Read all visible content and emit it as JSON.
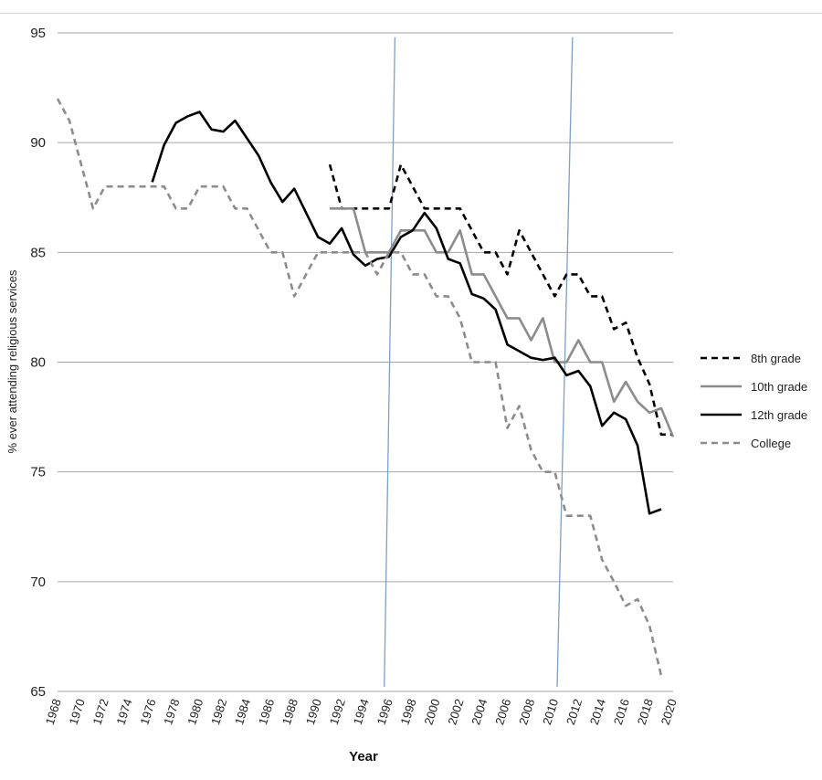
{
  "chart_data": {
    "type": "line",
    "title": "",
    "xlabel": "Year",
    "ylabel": "% ever attending religious services",
    "xlim": [
      1968,
      2020
    ],
    "ylim": [
      65,
      95
    ],
    "y_ticks": [
      "65",
      "70",
      "75",
      "80",
      "85",
      "90",
      "95"
    ],
    "x_ticks": [
      "1968",
      "1970",
      "1972",
      "1974",
      "1976",
      "1978",
      "1980",
      "1982",
      "1984",
      "1986",
      "1988",
      "1990",
      "1992",
      "1994",
      "1996",
      "1998",
      "2000",
      "2002",
      "2004",
      "2006",
      "2008",
      "2010",
      "2012",
      "2014",
      "2016",
      "2018",
      "2020"
    ],
    "grid": "horizontal",
    "legend_position": "right",
    "series": [
      {
        "name": "8th grade",
        "color": "#000000",
        "style": "dashed",
        "points": [
          [
            1991,
            89
          ],
          [
            1992,
            87
          ],
          [
            1993,
            87
          ],
          [
            1994,
            87
          ],
          [
            1995,
            87
          ],
          [
            1996,
            87
          ],
          [
            1997,
            89
          ],
          [
            1998,
            88
          ],
          [
            1999,
            87
          ],
          [
            2000,
            87
          ],
          [
            2001,
            87
          ],
          [
            2002,
            87
          ],
          [
            2003,
            86
          ],
          [
            2004,
            85
          ],
          [
            2005,
            85
          ],
          [
            2006,
            84
          ],
          [
            2007,
            86
          ],
          [
            2008,
            85
          ],
          [
            2009,
            84
          ],
          [
            2010,
            83
          ],
          [
            2011,
            84
          ],
          [
            2012,
            84
          ],
          [
            2013,
            83
          ],
          [
            2014,
            83
          ],
          [
            2015,
            81.5
          ],
          [
            2016,
            81.8
          ],
          [
            2017,
            80.2
          ],
          [
            2018,
            79
          ],
          [
            2019,
            76.7
          ],
          [
            2020,
            76.7
          ]
        ]
      },
      {
        "name": "10th grade",
        "color": "#8c8c8c",
        "style": "solid",
        "points": [
          [
            1991,
            87
          ],
          [
            1992,
            87
          ],
          [
            1993,
            87
          ],
          [
            1994,
            85
          ],
          [
            1995,
            85
          ],
          [
            1996,
            85
          ],
          [
            1997,
            86
          ],
          [
            1998,
            86
          ],
          [
            1999,
            86
          ],
          [
            2000,
            85
          ],
          [
            2001,
            85
          ],
          [
            2002,
            86
          ],
          [
            2003,
            84
          ],
          [
            2004,
            84
          ],
          [
            2005,
            83
          ],
          [
            2006,
            82
          ],
          [
            2007,
            82
          ],
          [
            2008,
            81
          ],
          [
            2009,
            82
          ],
          [
            2010,
            80
          ],
          [
            2011,
            80
          ],
          [
            2012,
            81
          ],
          [
            2013,
            80
          ],
          [
            2014,
            80
          ],
          [
            2015,
            78.2
          ],
          [
            2016,
            79.1
          ],
          [
            2017,
            78.2
          ],
          [
            2018,
            77.7
          ],
          [
            2019,
            77.9
          ],
          [
            2020,
            76.6
          ]
        ]
      },
      {
        "name": "12th grade",
        "color": "#000000",
        "style": "solid",
        "points": [
          [
            1976,
            88.2
          ],
          [
            1977,
            89.9
          ],
          [
            1978,
            90.9
          ],
          [
            1979,
            91.2
          ],
          [
            1980,
            91.4
          ],
          [
            1981,
            90.6
          ],
          [
            1982,
            90.5
          ],
          [
            1983,
            91
          ],
          [
            1984,
            90.2
          ],
          [
            1985,
            89.4
          ],
          [
            1986,
            88.2
          ],
          [
            1987,
            87.3
          ],
          [
            1988,
            87.9
          ],
          [
            1989,
            86.8
          ],
          [
            1990,
            85.7
          ],
          [
            1991,
            85.4
          ],
          [
            1992,
            86.1
          ],
          [
            1993,
            84.9
          ],
          [
            1994,
            84.4
          ],
          [
            1995,
            84.7
          ],
          [
            1996,
            84.8
          ],
          [
            1997,
            85.7
          ],
          [
            1998,
            86
          ],
          [
            1999,
            86.8
          ],
          [
            2000,
            86.1
          ],
          [
            2001,
            84.7
          ],
          [
            2002,
            84.5
          ],
          [
            2003,
            83.1
          ],
          [
            2004,
            82.9
          ],
          [
            2005,
            82.4
          ],
          [
            2006,
            80.8
          ],
          [
            2007,
            80.5
          ],
          [
            2008,
            80.2
          ],
          [
            2009,
            80.1
          ],
          [
            2010,
            80.2
          ],
          [
            2011,
            79.4
          ],
          [
            2012,
            79.6
          ],
          [
            2013,
            78.9
          ],
          [
            2014,
            77.1
          ],
          [
            2015,
            77.7
          ],
          [
            2016,
            77.4
          ],
          [
            2017,
            76.2
          ],
          [
            2018,
            73.1
          ],
          [
            2019,
            73.3
          ]
        ]
      },
      {
        "name": "College",
        "color": "#8c8c8c",
        "style": "dashed",
        "points": [
          [
            1968,
            92
          ],
          [
            1969,
            91
          ],
          [
            1970,
            89
          ],
          [
            1971,
            87
          ],
          [
            1972,
            88
          ],
          [
            1973,
            88
          ],
          [
            1974,
            88
          ],
          [
            1975,
            88
          ],
          [
            1976,
            88
          ],
          [
            1977,
            88
          ],
          [
            1978,
            87
          ],
          [
            1979,
            87
          ],
          [
            1980,
            88
          ],
          [
            1981,
            88
          ],
          [
            1982,
            88
          ],
          [
            1983,
            87
          ],
          [
            1984,
            87
          ],
          [
            1985,
            86
          ],
          [
            1986,
            85
          ],
          [
            1987,
            85
          ],
          [
            1988,
            83
          ],
          [
            1989,
            84
          ],
          [
            1990,
            85
          ],
          [
            1991,
            85
          ],
          [
            1992,
            85
          ],
          [
            1993,
            85
          ],
          [
            1994,
            85
          ],
          [
            1995,
            84
          ],
          [
            1996,
            85
          ],
          [
            1997,
            85
          ],
          [
            1998,
            84
          ],
          [
            1999,
            84
          ],
          [
            2000,
            83
          ],
          [
            2001,
            83
          ],
          [
            2002,
            82
          ],
          [
            2003,
            80
          ],
          [
            2004,
            80
          ],
          [
            2005,
            80
          ],
          [
            2006,
            77
          ],
          [
            2007,
            78
          ],
          [
            2008,
            76
          ],
          [
            2009,
            75
          ],
          [
            2010,
            75
          ],
          [
            2011,
            73
          ],
          [
            2012,
            73
          ],
          [
            2013,
            73
          ],
          [
            2014,
            71
          ],
          [
            2015,
            70
          ],
          [
            2016,
            68.9
          ],
          [
            2017,
            69.2
          ],
          [
            2018,
            68
          ],
          [
            2019,
            65.7
          ]
        ]
      }
    ],
    "annotation_lines": [
      {
        "color": "#7f9fc8",
        "from": [
          1995.6,
          65.2
        ],
        "to": [
          1996.5,
          94.8
        ]
      },
      {
        "color": "#7f9fc8",
        "from": [
          2010.2,
          65.2
        ],
        "to": [
          2011.5,
          94.8
        ]
      }
    ]
  }
}
